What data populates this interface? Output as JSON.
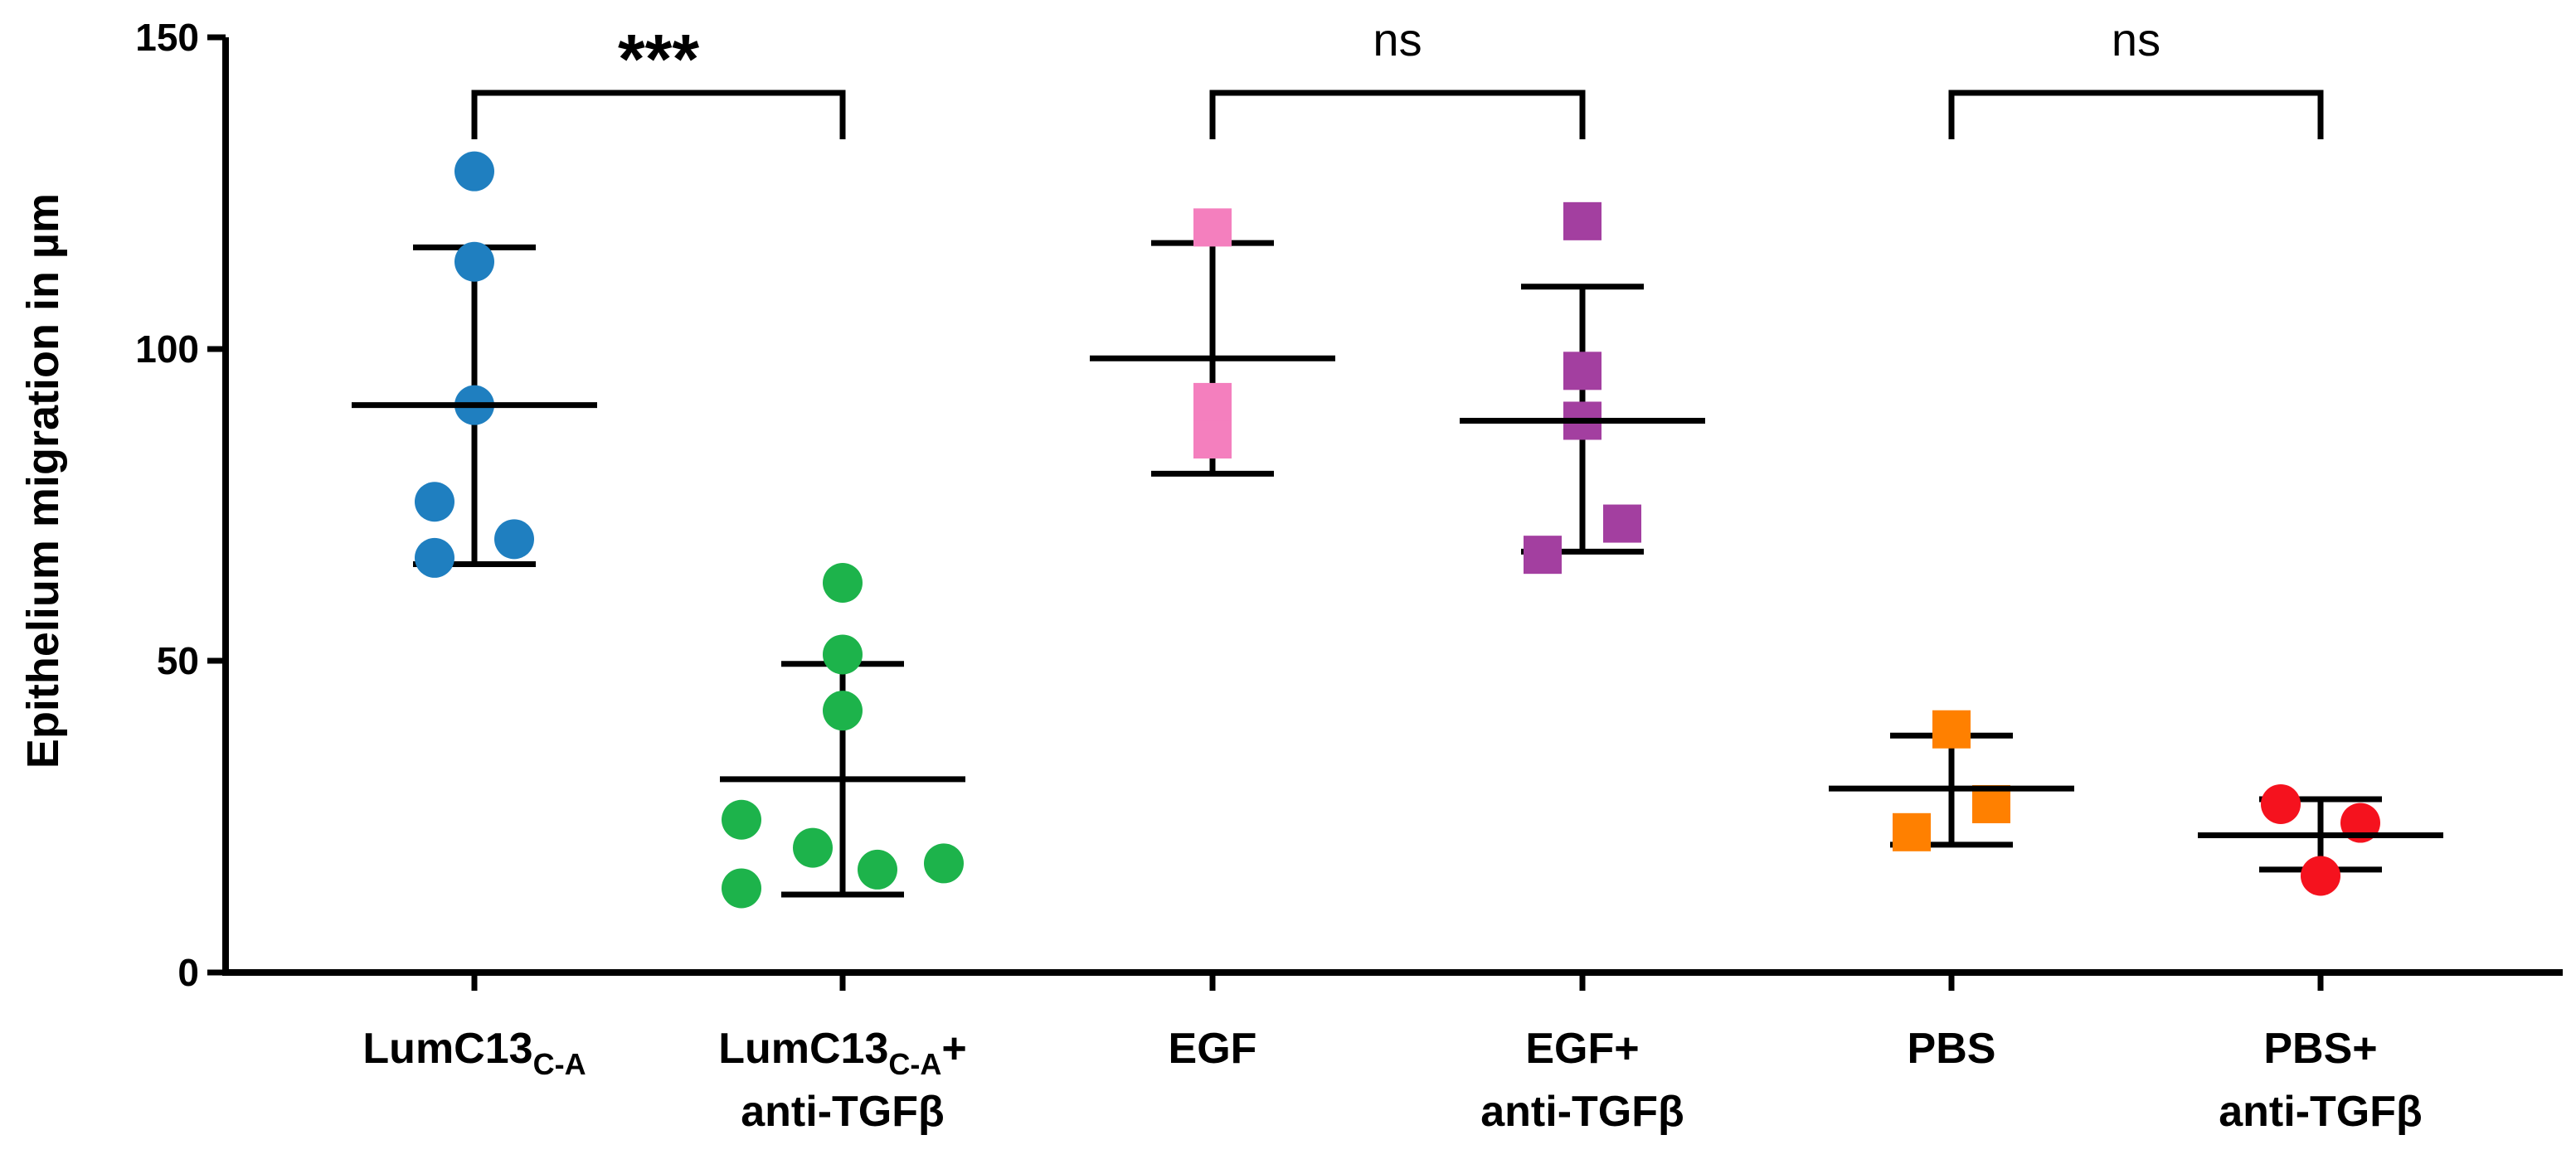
{
  "chart_data": {
    "type": "scatter",
    "ylabel": "Epithelium migration in µm",
    "ylim": [
      0,
      150
    ],
    "yticks": [
      "0",
      "50",
      "100",
      "150"
    ],
    "groups": [
      {
        "id": "g1",
        "label_main": "LumC13",
        "label_sub": "C-A",
        "label_suffix": "",
        "label_line2": "",
        "color": "#1f7fc0",
        "marker": "circle",
        "values": [
          128.5,
          114,
          91,
          75.5,
          66.5,
          69.5
        ],
        "mean": 91,
        "sd_upper": 116.3,
        "sd_lower": 65.5
      },
      {
        "id": "g2",
        "label_main": "LumC13",
        "label_sub": "C-A",
        "label_suffix": "+",
        "label_line2": "anti-TGFβ",
        "color": "#1db34b",
        "marker": "circle",
        "values": [
          62.5,
          51,
          42,
          24.5,
          20,
          13.5,
          16.5,
          17.5
        ],
        "mean": 31,
        "sd_upper": 49.5,
        "sd_lower": 12.5
      },
      {
        "id": "g3",
        "label_main": "EGF",
        "label_sub": "",
        "label_suffix": "",
        "label_line2": "",
        "color": "#f47fbe",
        "marker": "square",
        "values": [
          119.5,
          91.5,
          85.5
        ],
        "mean": 98.5,
        "sd_upper": 117,
        "sd_lower": 80
      },
      {
        "id": "g4",
        "label_main": "EGF+",
        "label_sub": "",
        "label_suffix": "",
        "label_line2": "anti-TGFβ",
        "color": "#a33fa0",
        "marker": "square",
        "values": [
          120.5,
          96.5,
          88.5,
          72,
          67
        ],
        "mean": 88.5,
        "sd_upper": 110,
        "sd_lower": 67.5
      },
      {
        "id": "g5",
        "label_main": "PBS",
        "label_sub": "",
        "label_suffix": "",
        "label_line2": "",
        "color": "#ff8000",
        "marker": "square",
        "values": [
          39,
          27,
          22.5
        ],
        "mean": 29.5,
        "sd_upper": 38,
        "sd_lower": 20.5
      },
      {
        "id": "g6",
        "label_main": "PBS+",
        "label_sub": "",
        "label_suffix": "",
        "label_line2": "anti-TGFβ",
        "color": "#f5121e",
        "marker": "circle",
        "values": [
          27,
          24,
          15.5
        ],
        "mean": 22,
        "sd_upper": 27.8,
        "sd_lower": 16.5
      }
    ],
    "comparisons": [
      {
        "from": 0,
        "to": 1,
        "label": "***"
      },
      {
        "from": 2,
        "to": 3,
        "label": "ns"
      },
      {
        "from": 4,
        "to": 5,
        "label": "ns"
      }
    ]
  }
}
